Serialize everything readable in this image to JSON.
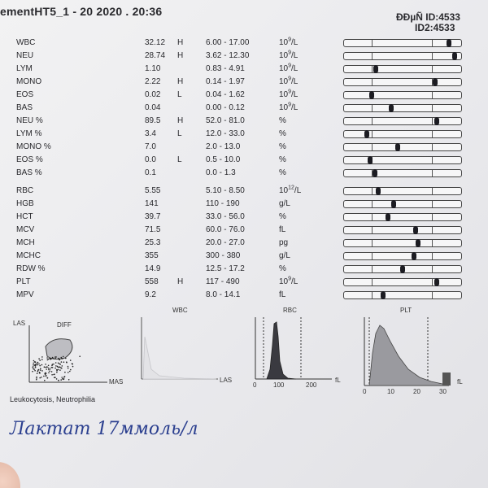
{
  "header": {
    "title": "ementHT5_1 - 20  2020 . 20:36",
    "id1": "ÐÐµÑ  ID:4533",
    "id2": "ID2:4533"
  },
  "results": [
    {
      "name": "WBC",
      "value": "32.12",
      "flag": "H",
      "range": "6.00 - 17.00",
      "unit_base": "10",
      "unit_sup": "9",
      "unit_tail": "/L",
      "marker": 0.88
    },
    {
      "name": "NEU",
      "value": "28.74",
      "flag": "H",
      "range": "3.62 - 12.30",
      "unit_base": "10",
      "unit_sup": "9",
      "unit_tail": "/L",
      "marker": 0.93
    },
    {
      "name": "LYM",
      "value": "1.10",
      "flag": "",
      "range": "0.83 - 4.91",
      "unit_base": "10",
      "unit_sup": "9",
      "unit_tail": "/L",
      "marker": 0.27
    },
    {
      "name": "MONO",
      "value": "2.22",
      "flag": "H",
      "range": "0.14 - 1.97",
      "unit_base": "10",
      "unit_sup": "9",
      "unit_tail": "/L",
      "marker": 0.77
    },
    {
      "name": "EOS",
      "value": "0.02",
      "flag": "L",
      "range": "0.04 - 1.62",
      "unit_base": "10",
      "unit_sup": "9",
      "unit_tail": "/L",
      "marker": 0.23
    },
    {
      "name": "BAS",
      "value": "0.04",
      "flag": "",
      "range": "0.00 - 0.12",
      "unit_base": "10",
      "unit_sup": "9",
      "unit_tail": "/L",
      "marker": 0.4
    },
    {
      "name": "NEU %",
      "value": "89.5",
      "flag": "H",
      "range": "52.0 - 81.0",
      "unit_base": "%",
      "unit_sup": "",
      "unit_tail": "",
      "marker": 0.78
    },
    {
      "name": "LYM %",
      "value": "3.4",
      "flag": "L",
      "range": "12.0 - 33.0",
      "unit_base": "%",
      "unit_sup": "",
      "unit_tail": "",
      "marker": 0.19
    },
    {
      "name": "MONO %",
      "value": "7.0",
      "flag": "",
      "range": "2.0 - 13.0",
      "unit_base": "%",
      "unit_sup": "",
      "unit_tail": "",
      "marker": 0.45
    },
    {
      "name": "EOS %",
      "value": "0.0",
      "flag": "L",
      "range": "0.5 - 10.0",
      "unit_base": "%",
      "unit_sup": "",
      "unit_tail": "",
      "marker": 0.22
    },
    {
      "name": "BAS %",
      "value": "0.1",
      "flag": "",
      "range": "0.0 - 1.3",
      "unit_base": "%",
      "unit_sup": "",
      "unit_tail": "",
      "marker": 0.26
    },
    {
      "name": "RBC",
      "value": "5.55",
      "flag": "",
      "range": "5.10 - 8.50",
      "unit_base": "10",
      "unit_sup": "12",
      "unit_tail": "/L",
      "marker": 0.29
    },
    {
      "name": "HGB",
      "value": "141",
      "flag": "",
      "range": "110 - 190",
      "unit_base": "g/L",
      "unit_sup": "",
      "unit_tail": "",
      "marker": 0.42
    },
    {
      "name": "HCT",
      "value": "39.7",
      "flag": "",
      "range": "33.0 - 56.0",
      "unit_base": "%",
      "unit_sup": "",
      "unit_tail": "",
      "marker": 0.37
    },
    {
      "name": "MCV",
      "value": "71.5",
      "flag": "",
      "range": "60.0 - 76.0",
      "unit_base": "fL",
      "unit_sup": "",
      "unit_tail": "",
      "marker": 0.6
    },
    {
      "name": "MCH",
      "value": "25.3",
      "flag": "",
      "range": "20.0 - 27.0",
      "unit_base": "pg",
      "unit_sup": "",
      "unit_tail": "",
      "marker": 0.62
    },
    {
      "name": "MCHC",
      "value": "355",
      "flag": "",
      "range": "300 - 380",
      "unit_base": "g/L",
      "unit_sup": "",
      "unit_tail": "",
      "marker": 0.59
    },
    {
      "name": "RDW %",
      "value": "14.9",
      "flag": "",
      "range": "12.5 - 17.2",
      "unit_base": "%",
      "unit_sup": "",
      "unit_tail": "",
      "marker": 0.49
    },
    {
      "name": "PLT",
      "value": "558",
      "flag": "H",
      "range": "117 - 490",
      "unit_base": "10",
      "unit_sup": "9",
      "unit_tail": "/L",
      "marker": 0.78
    },
    {
      "name": "MPV",
      "value": "9.2",
      "flag": "",
      "range": "8.0 - 14.1",
      "unit_base": "fL",
      "unit_sup": "",
      "unit_tail": "",
      "marker": 0.33
    }
  ],
  "scatter_plot": {
    "y_label": "LAS",
    "diff_label": "DIFF",
    "x_label": "MAS"
  },
  "wbc_hist": {
    "title": "WBC",
    "x_label": "LAS"
  },
  "rbc_hist": {
    "title": "RBC",
    "x_label": "fL",
    "ticks": [
      "0",
      "100",
      "200"
    ]
  },
  "plt_hist": {
    "title": "PLT",
    "x_label": "fL",
    "ticks": [
      "0",
      "10",
      "20",
      "30"
    ]
  },
  "comment": "Leukocytosis, Neutrophilia",
  "handwritten_note": "Лактат 17ммоль/л",
  "colors": {
    "ink": "#2a2a2e",
    "handwriting": "#2b3f8f",
    "histogram_fill": "#8e8e92"
  }
}
